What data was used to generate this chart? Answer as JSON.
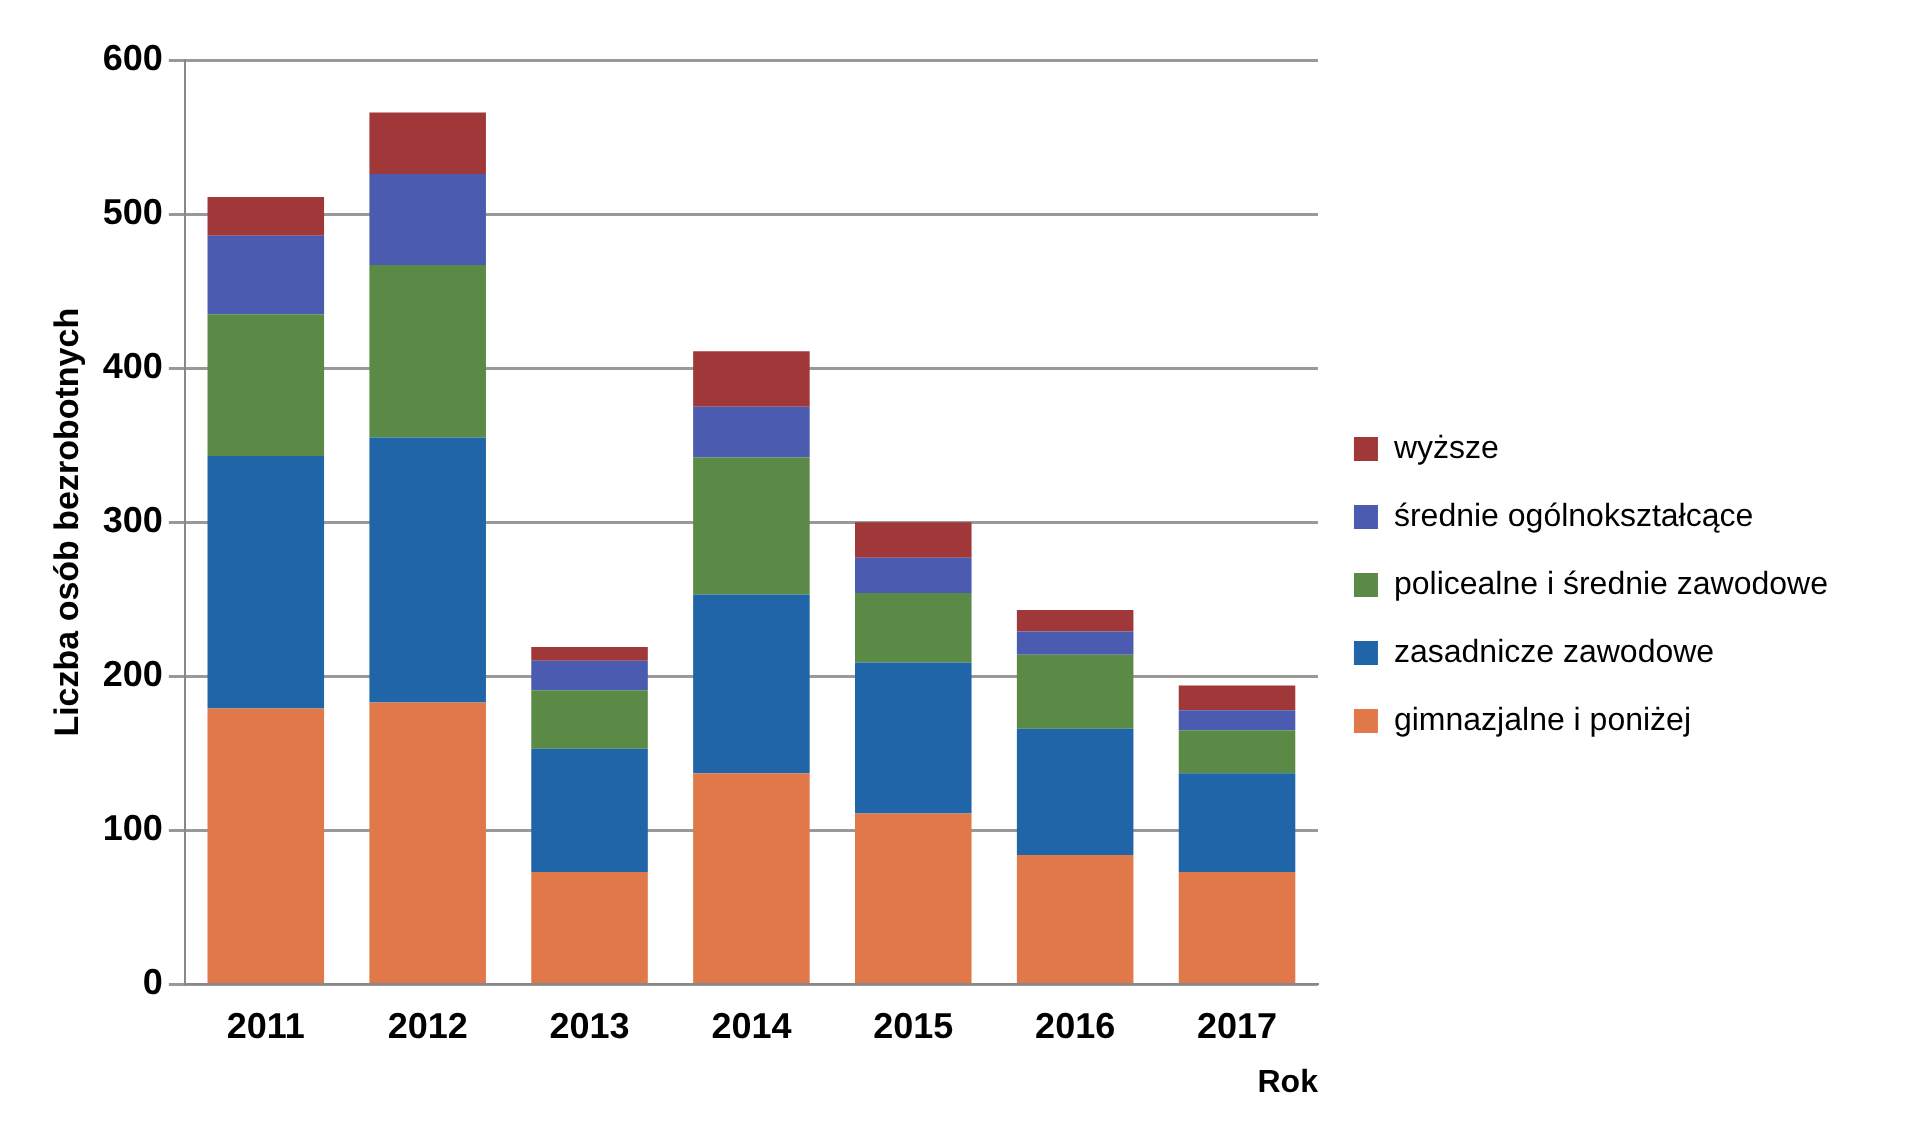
{
  "chart_data": {
    "type": "bar",
    "stacked": true,
    "xlabel": "Rok",
    "ylabel": "Liczba osób bezrobotnych",
    "categories": [
      "2011",
      "2012",
      "2013",
      "2014",
      "2015",
      "2016",
      "2017"
    ],
    "series": [
      {
        "name": "gimnazjalne i poniżej",
        "color": "#e0784a",
        "values": [
          179,
          183,
          73,
          137,
          111,
          84,
          73
        ]
      },
      {
        "name": "zasadnicze zawodowe",
        "color": "#1f65a8",
        "values": [
          164,
          172,
          80,
          116,
          98,
          82,
          64
        ]
      },
      {
        "name": "policealne i średnie zawodowe",
        "color": "#5a8a45",
        "values": [
          92,
          112,
          38,
          89,
          45,
          48,
          28
        ]
      },
      {
        "name": "średnie ogólnokształcące",
        "color": "#4a5bb0",
        "values": [
          51,
          59,
          19,
          33,
          23,
          15,
          13
        ]
      },
      {
        "name": "wyższe",
        "color": "#a0383a",
        "values": [
          25,
          40,
          9,
          36,
          23,
          14,
          16
        ]
      }
    ],
    "ylim": [
      0,
      600
    ],
    "yticks": [
      0,
      100,
      200,
      300,
      400,
      500,
      600
    ],
    "grid": "y",
    "legend": "right"
  }
}
